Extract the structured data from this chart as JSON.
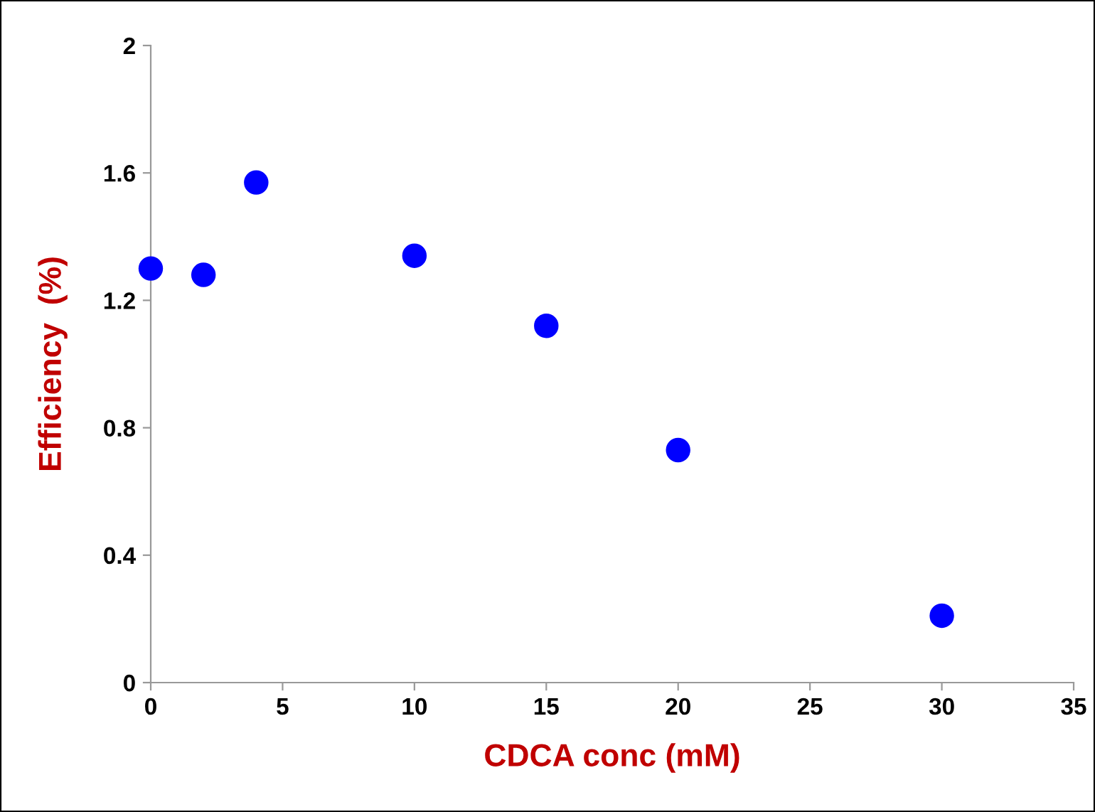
{
  "chart_data": {
    "type": "scatter",
    "xlabel": "CDCA conc (mM)",
    "ylabel": "Efficiency  (%)",
    "x": [
      0,
      2,
      4,
      10,
      15,
      20,
      30
    ],
    "series": [
      {
        "color": "#0000ff",
        "values": [
          1.3,
          1.28,
          1.57,
          1.34,
          1.12,
          0.73,
          0.21
        ]
      }
    ],
    "xlim": [
      0,
      35
    ],
    "xticks": [
      0,
      5,
      10,
      15,
      20,
      25,
      30,
      35
    ],
    "ylim": [
      0,
      2
    ],
    "yticks": [
      0,
      {
        "value": 0.4,
        "label": "0.4"
      },
      {
        "value": 0.8,
        "label": "0.8"
      },
      {
        "value": 1.2,
        "label": "1.2"
      },
      {
        "value": 1.6,
        "label": "1.6"
      },
      2
    ],
    "marker": "circle",
    "grid": false,
    "legend": false
  }
}
